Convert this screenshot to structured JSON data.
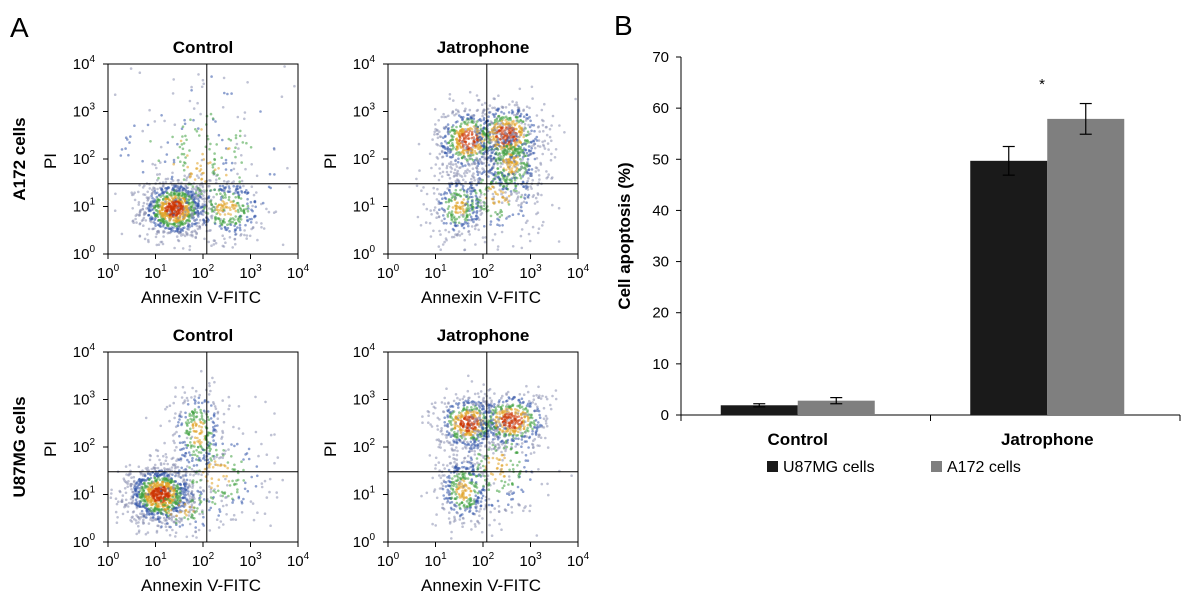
{
  "panel_a": {
    "letter": "A",
    "tick_base": "10",
    "decade_exponents": [
      "0",
      "1",
      "2",
      "3",
      "4"
    ],
    "rows": [
      {
        "label": "A172 cells",
        "plots": [
          {
            "title": "Control",
            "xlabel": "Annexin V-FITC",
            "ylabel": "PI",
            "pattern": "control_a172"
          },
          {
            "title": "Jatrophone",
            "xlabel": "Annexin V-FITC",
            "ylabel": "PI",
            "pattern": "jatro_a172"
          }
        ]
      },
      {
        "label": "U87MG cells",
        "plots": [
          {
            "title": "Control",
            "xlabel": "Annexin V-FITC",
            "ylabel": "PI",
            "pattern": "control_u87"
          },
          {
            "title": "Jatrophone",
            "xlabel": "Annexin V-FITC",
            "ylabel": "PI",
            "pattern": "jatro_u87"
          }
        ]
      }
    ]
  },
  "chart_data": {
    "type": "bar",
    "panel_letter": "B",
    "categories": [
      "Control",
      "Jatrophone"
    ],
    "series": [
      {
        "name": "U87MG cells",
        "color": "#1a1a1a",
        "values": [
          1.9,
          49.7
        ],
        "errors": [
          0.3,
          2.8
        ]
      },
      {
        "name": "A172 cells",
        "color": "#7f7f7f",
        "values": [
          2.8,
          57.9
        ],
        "errors": [
          0.6,
          3.0
        ]
      }
    ],
    "ylabel": "Cell apoptosis (%)",
    "ylim": [
      0,
      70
    ],
    "yticks": [
      0,
      10,
      20,
      30,
      40,
      50,
      60,
      70
    ],
    "annotation": "*",
    "legend_position": "bottom"
  }
}
